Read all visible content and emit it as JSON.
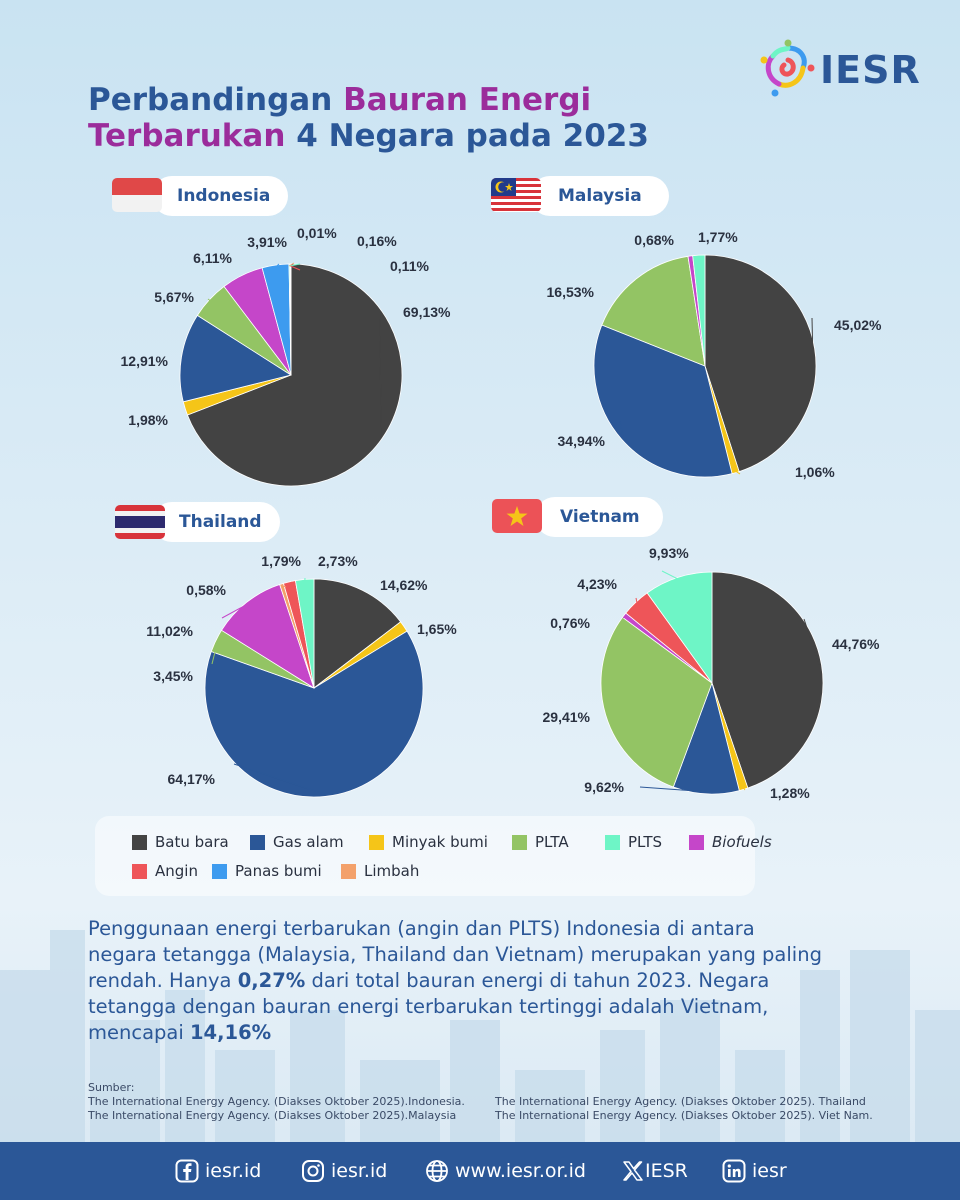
{
  "title": {
    "line1_part1": "Perbandingan ",
    "line1_part2": "Bauran Energi",
    "line2_part1": "Terbarukan",
    "line2_part2": " 4 Negara pada 2023"
  },
  "logo": {
    "text": "IESR",
    "icon": "iesr-swirl-logo-icon"
  },
  "colors": {
    "Batu bara": "#434343",
    "Gas alam": "#2b5797",
    "Minyak bumi": "#f5c518",
    "PLTA": "#93c464",
    "PLTS": "#6ef5c6",
    "Biofuels": "#c546c9",
    "Angin": "#ee5559",
    "Panas bumi": "#3d9bef",
    "Limbah": "#f3a16b"
  },
  "chart_data": [
    {
      "type": "pie",
      "title": "Indonesia",
      "flag": "indonesia-flag-icon",
      "slices": [
        {
          "label": "Batu bara",
          "value": 69.13,
          "text": "69,13%"
        },
        {
          "label": "Minyak bumi",
          "value": 1.98,
          "text": "1,98%"
        },
        {
          "label": "Gas alam",
          "value": 12.91,
          "text": "12,91%"
        },
        {
          "label": "PLTA",
          "value": 5.67,
          "text": "5,67%"
        },
        {
          "label": "Biofuels",
          "value": 6.11,
          "text": "6,11%"
        },
        {
          "label": "Panas bumi",
          "value": 3.91,
          "text": "3,91%"
        },
        {
          "label": "Limbah",
          "value": 0.01,
          "text": "0,01%"
        },
        {
          "label": "PLTS",
          "value": 0.16,
          "text": "0,16%"
        },
        {
          "label": "Angin",
          "value": 0.11,
          "text": "0,11%"
        }
      ]
    },
    {
      "type": "pie",
      "title": "Malaysia",
      "flag": "malaysia-flag-icon",
      "slices": [
        {
          "label": "Batu bara",
          "value": 45.02,
          "text": "45,02%"
        },
        {
          "label": "Minyak bumi",
          "value": 1.06,
          "text": "1,06%"
        },
        {
          "label": "Gas alam",
          "value": 34.94,
          "text": "34,94%"
        },
        {
          "label": "PLTA",
          "value": 16.53,
          "text": "16,53%"
        },
        {
          "label": "Biofuels",
          "value": 0.68,
          "text": "0,68%"
        },
        {
          "label": "PLTS",
          "value": 1.77,
          "text": "1,77%"
        }
      ]
    },
    {
      "type": "pie",
      "title": "Thailand",
      "flag": "thailand-flag-icon",
      "slices": [
        {
          "label": "Batu bara",
          "value": 14.62,
          "text": "14,62%"
        },
        {
          "label": "Minyak bumi",
          "value": 1.65,
          "text": "1,65%"
        },
        {
          "label": "Gas alam",
          "value": 64.17,
          "text": "64,17%"
        },
        {
          "label": "PLTA",
          "value": 3.45,
          "text": "3,45%"
        },
        {
          "label": "Biofuels",
          "value": 11.02,
          "text": "11,02%"
        },
        {
          "label": "Limbah",
          "value": 0.58,
          "text": "0,58%"
        },
        {
          "label": "Angin",
          "value": 1.79,
          "text": "1,79%"
        },
        {
          "label": "PLTS",
          "value": 2.73,
          "text": "2,73%"
        }
      ]
    },
    {
      "type": "pie",
      "title": "Vietnam",
      "flag": "vietnam-flag-icon",
      "slices": [
        {
          "label": "Batu bara",
          "value": 44.76,
          "text": "44,76%"
        },
        {
          "label": "Minyak bumi",
          "value": 1.28,
          "text": "1,28%"
        },
        {
          "label": "Gas alam",
          "value": 9.62,
          "text": "9,62%"
        },
        {
          "label": "PLTA",
          "value": 29.41,
          "text": "29,41%"
        },
        {
          "label": "Biofuels",
          "value": 0.76,
          "text": "0,76%"
        },
        {
          "label": "Angin",
          "value": 4.23,
          "text": "4,23%"
        },
        {
          "label": "PLTS",
          "value": 9.93,
          "text": "9,93%"
        }
      ]
    }
  ],
  "legend": [
    "Batu bara",
    "Gas alam",
    "Minyak bumi",
    "PLTA",
    "PLTS",
    "Biofuels",
    "Angin",
    "Panas bumi",
    "Limbah"
  ],
  "summary": {
    "part1": "Penggunaan energi terbarukan (angin dan PLTS) Indonesia di antara negara tetangga (Malaysia, Thailand dan Vietnam) merupakan yang paling rendah.  Hanya ",
    "highlight1": "0,27%",
    "part2": " dari total bauran energi di tahun 2023. Negara tetangga dengan bauran energi terbarukan tertinggi adalah Vietnam, mencapai ",
    "highlight2": "14,16%"
  },
  "sources": {
    "heading": "Sumber:",
    "left": [
      "The International Energy Agency. (Diakses Oktober  2025).Indonesia.",
      "The International Energy Agency. (Diakses Oktober  2025).Malaysia"
    ],
    "right": [
      "The International Energy Agency. (Diakses Oktober  2025). Thailand",
      "The International Energy Agency. (Diakses Oktober  2025). Viet Nam."
    ]
  },
  "footer": [
    {
      "icon": "facebook-icon",
      "text": "iesr.id"
    },
    {
      "icon": "instagram-icon",
      "text": "iesr.id"
    },
    {
      "icon": "globe-icon",
      "text": "www.iesr.or.id"
    },
    {
      "icon": "x-twitter-icon",
      "text": "IESR"
    },
    {
      "icon": "linkedin-icon",
      "text": "iesr"
    }
  ]
}
